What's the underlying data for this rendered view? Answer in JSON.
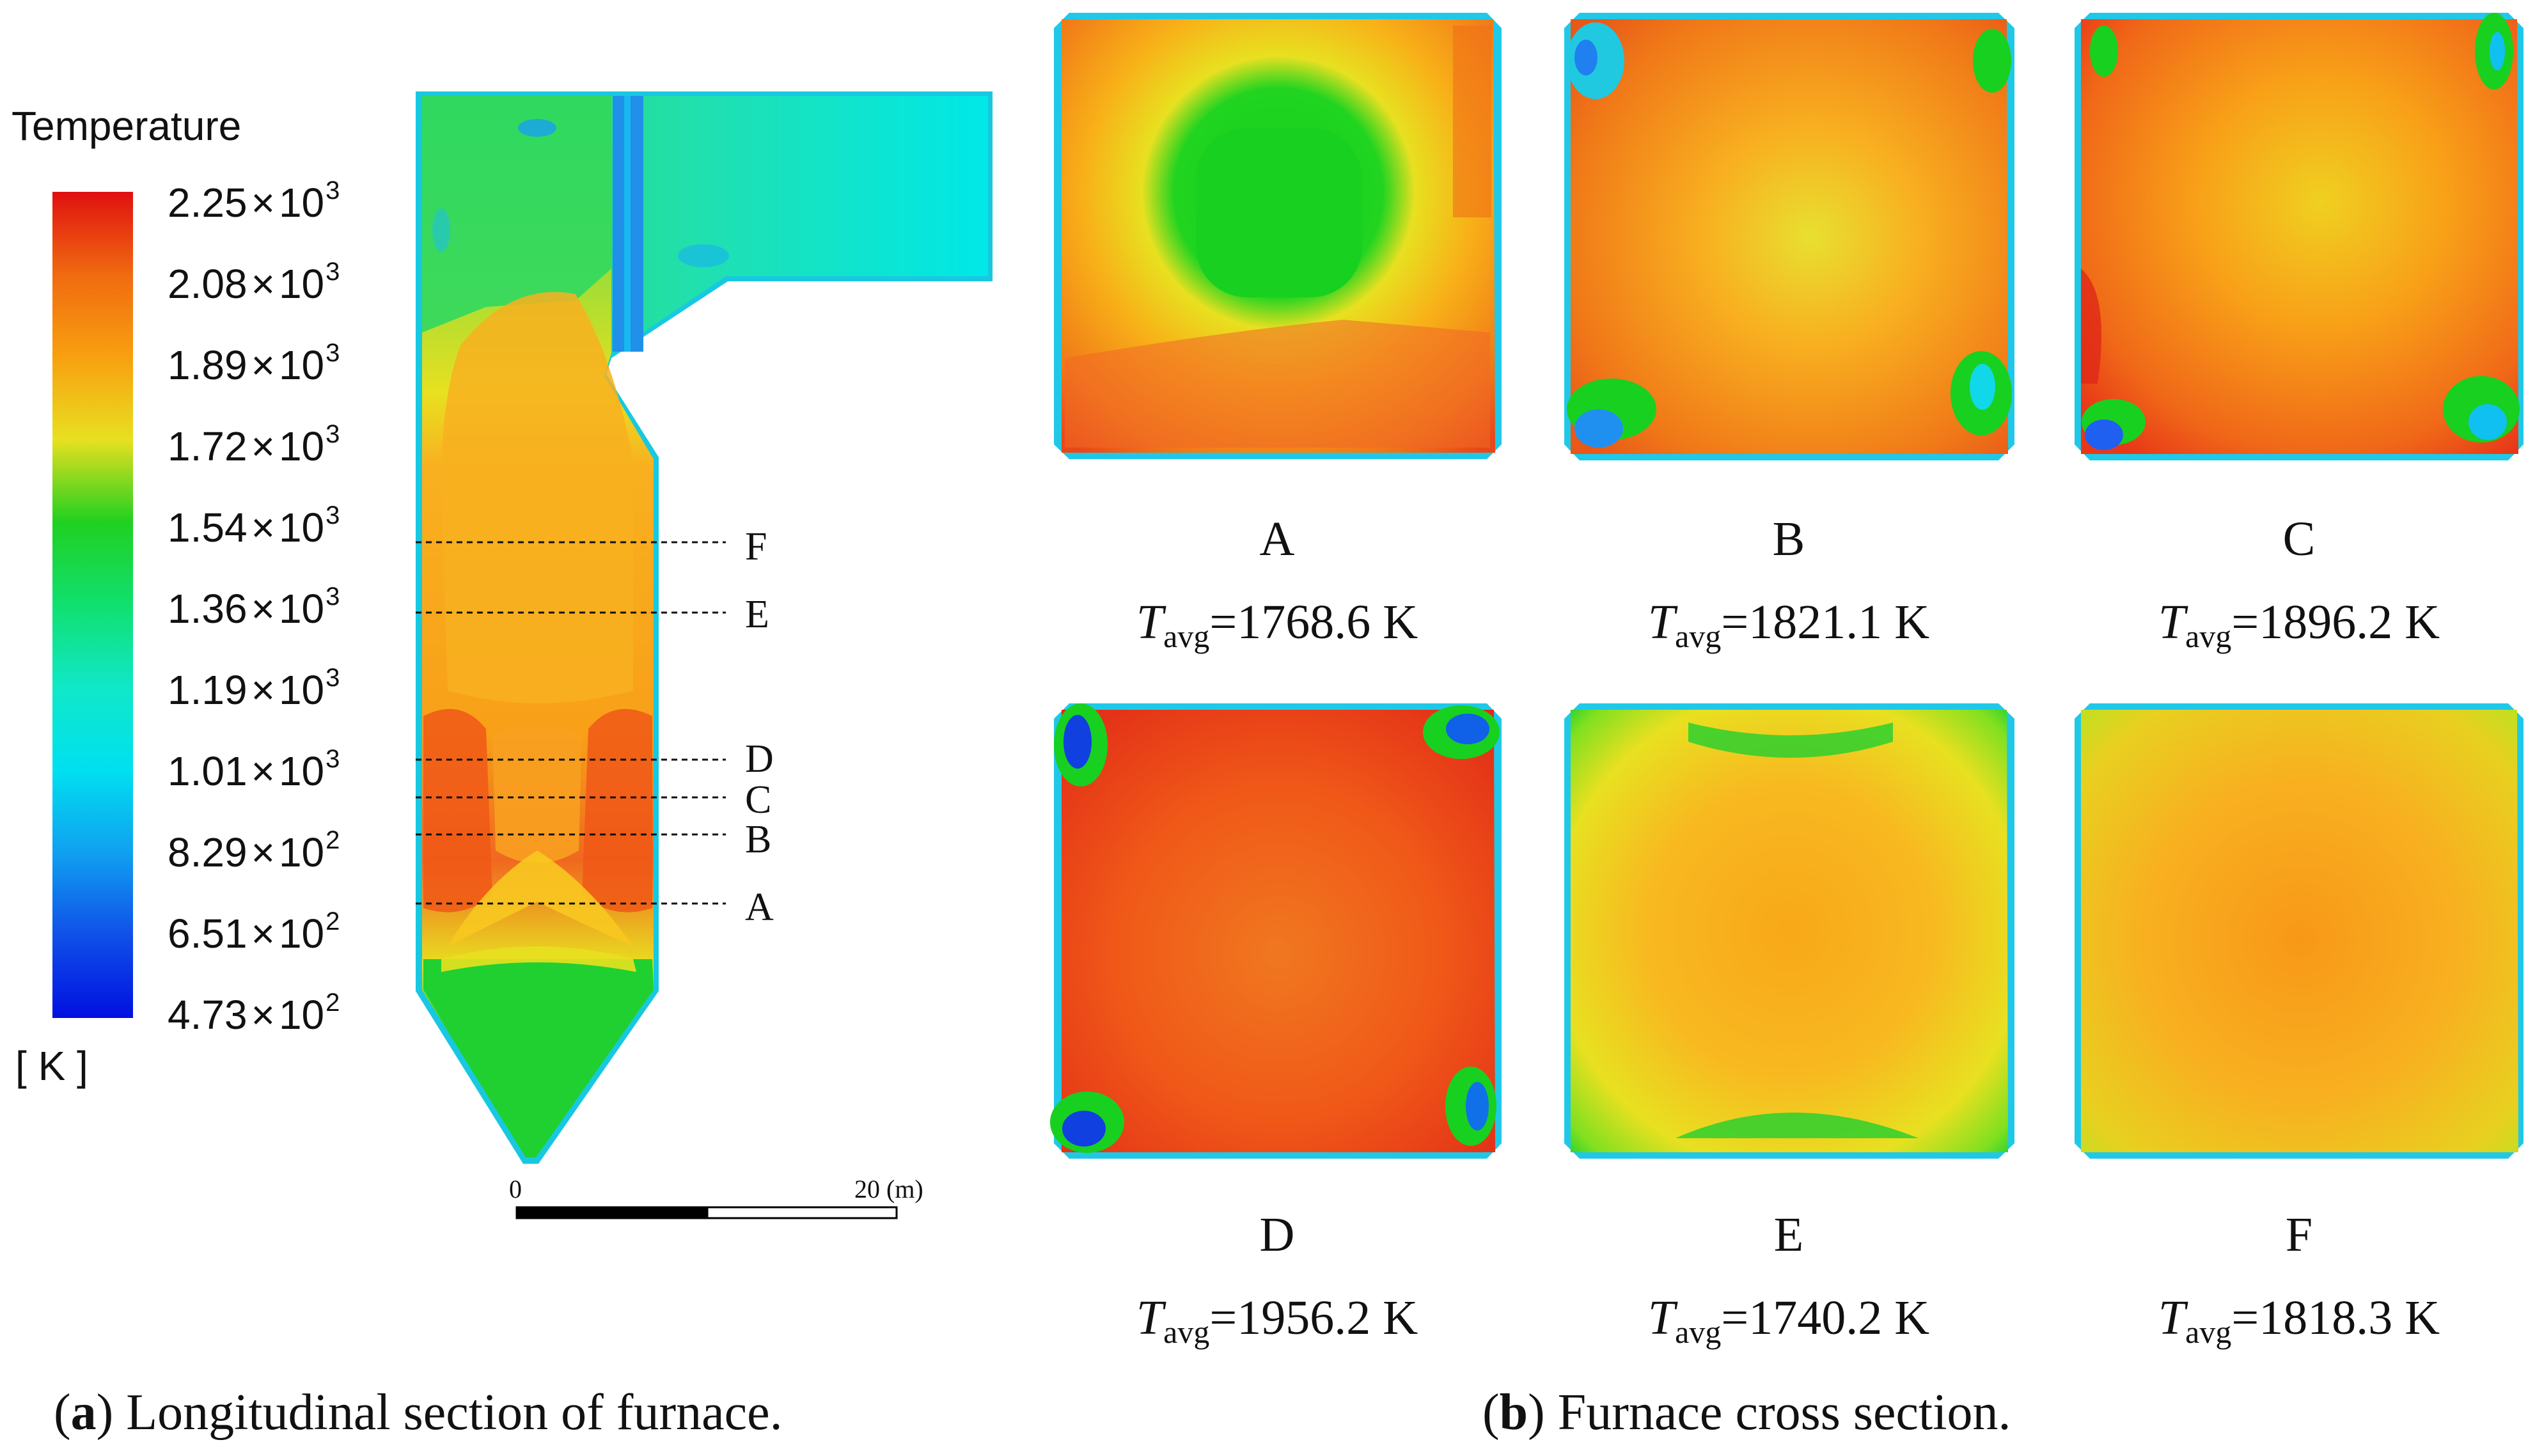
{
  "legend": {
    "title": "Temperature",
    "unit": "[ K ]",
    "ticks": [
      {
        "mantissa": "2.25",
        "exponent": "3"
      },
      {
        "mantissa": "2.08",
        "exponent": "3"
      },
      {
        "mantissa": "1.89",
        "exponent": "3"
      },
      {
        "mantissa": "1.72",
        "exponent": "3"
      },
      {
        "mantissa": "1.54",
        "exponent": "3"
      },
      {
        "mantissa": "1.36",
        "exponent": "3"
      },
      {
        "mantissa": "1.19",
        "exponent": "3"
      },
      {
        "mantissa": "1.01",
        "exponent": "3"
      },
      {
        "mantissa": "8.29",
        "exponent": "2"
      },
      {
        "mantissa": "6.51",
        "exponent": "2"
      },
      {
        "mantissa": "4.73",
        "exponent": "2"
      }
    ],
    "times_sign": "×",
    "base": "10",
    "colors": [
      "#e01010",
      "#f06a10",
      "#f8a010",
      "#e8e020",
      "#20d020",
      "#10e070",
      "#10e8c8",
      "#00e0f0",
      "#10a0f0",
      "#1050e8",
      "#0010e0"
    ]
  },
  "longitudinal": {
    "section_labels": [
      "F",
      "E",
      "D",
      "C",
      "B",
      "A"
    ],
    "scale_bar": {
      "start": "0",
      "end": "20 (m)"
    }
  },
  "cross_sections": [
    {
      "letter": "A",
      "t_symbol": "T",
      "t_sub": "avg",
      "t_value": "=1768.6 K"
    },
    {
      "letter": "B",
      "t_symbol": "T",
      "t_sub": "avg",
      "t_value": "=1821.1 K"
    },
    {
      "letter": "C",
      "t_symbol": "T",
      "t_sub": "avg",
      "t_value": "=1896.2 K"
    },
    {
      "letter": "D",
      "t_symbol": "T",
      "t_sub": "avg",
      "t_value": "=1956.2 K"
    },
    {
      "letter": "E",
      "t_symbol": "T",
      "t_sub": "avg",
      "t_value": "=1740.2 K"
    },
    {
      "letter": "F",
      "t_symbol": "T",
      "t_sub": "avg",
      "t_value": "=1818.3 K"
    }
  ],
  "captions": {
    "a_open": "(",
    "a_letter": "a",
    "a_text": ") Longitudinal section of furnace.",
    "b_open": "(",
    "b_letter": "b",
    "b_text": ") Furnace cross section."
  }
}
